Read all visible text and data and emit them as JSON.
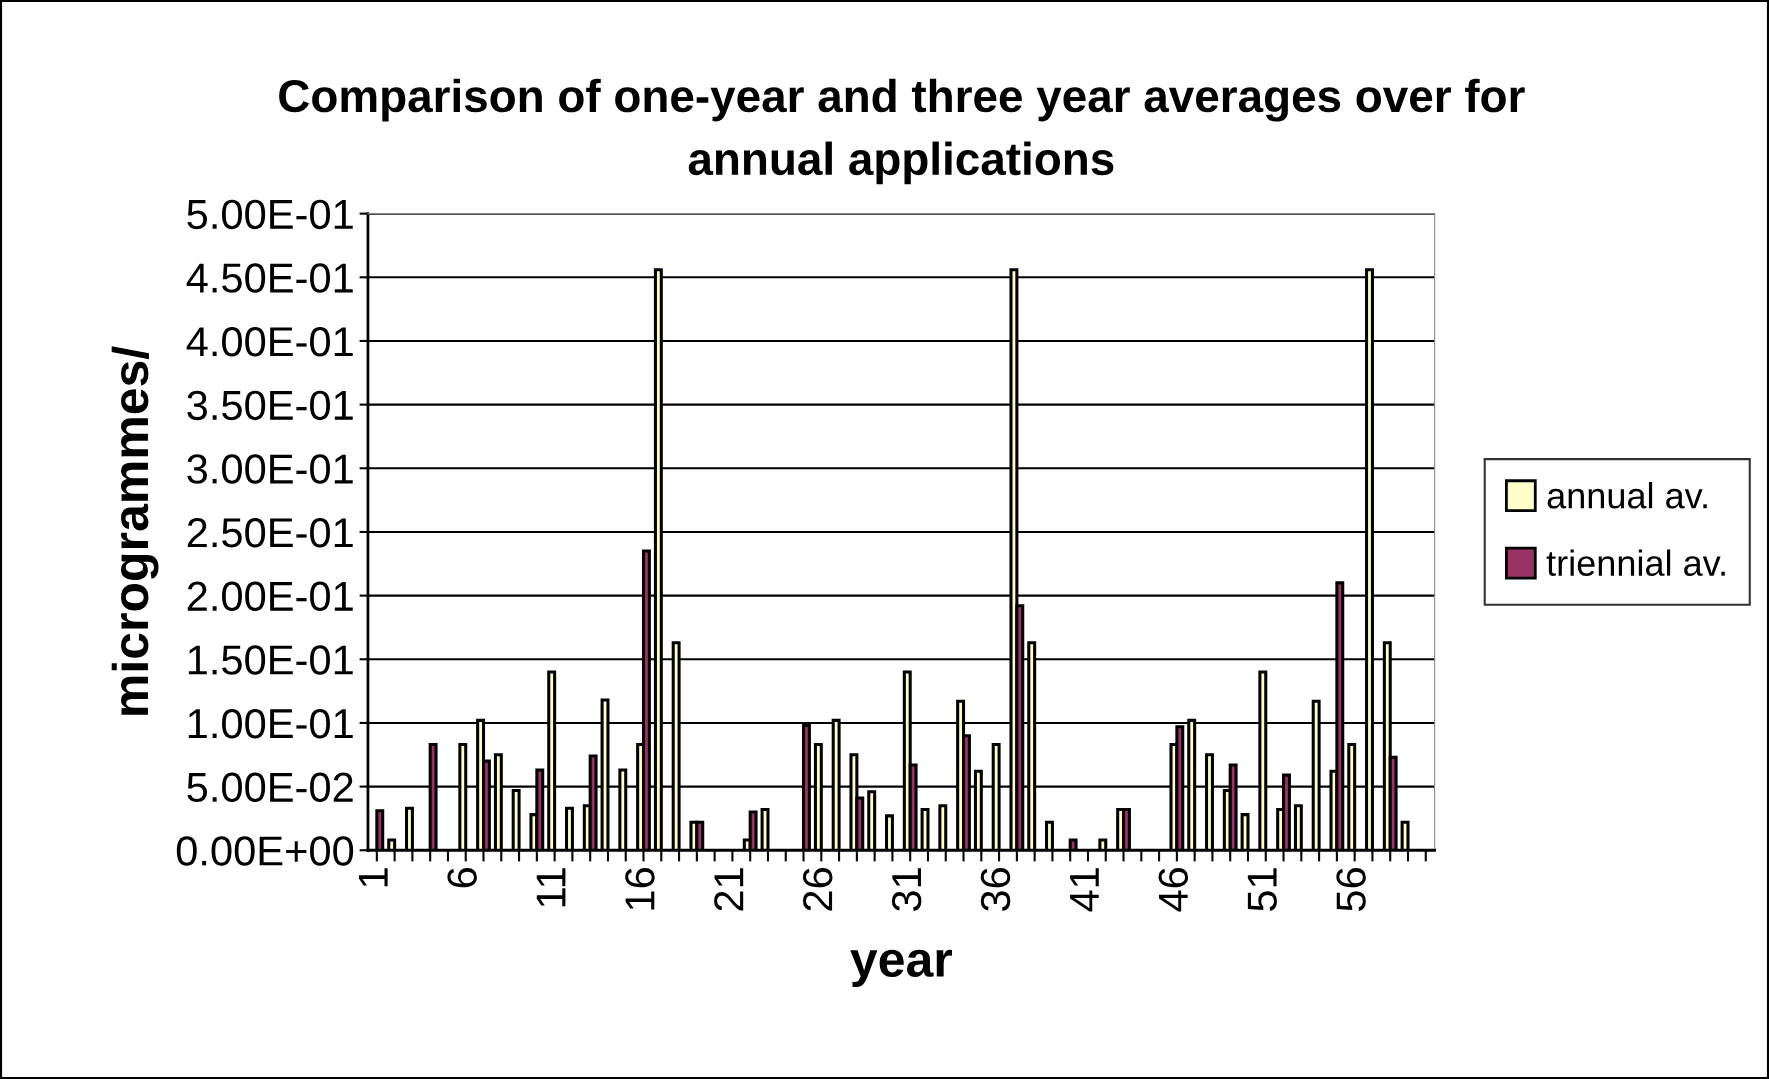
{
  "chart_data": {
    "type": "bar",
    "title": "Comparison of one-year and three year averages over for\nannual applications",
    "xlabel": "year",
    "ylabel": "microgrammes/",
    "categories": [
      "1",
      null,
      null,
      null,
      null,
      "6",
      null,
      null,
      null,
      null,
      "11",
      null,
      null,
      null,
      null,
      "16",
      null,
      null,
      null,
      null,
      "21",
      null,
      null,
      null,
      null,
      "26",
      null,
      null,
      null,
      null,
      "31",
      null,
      null,
      null,
      null,
      "36",
      null,
      null,
      null,
      null,
      "41",
      null,
      null,
      null,
      null,
      "46",
      null,
      null,
      null,
      null,
      "51",
      null,
      null,
      null,
      null,
      "56",
      null,
      null,
      null,
      null
    ],
    "series": [
      {
        "name": "annual av.",
        "color": "#ffffcc",
        "values": [
          null,
          0.008,
          0.033,
          null,
          null,
          0.083,
          0.102,
          0.075,
          0.047,
          0.028,
          0.14,
          0.033,
          0.035,
          0.118,
          0.063,
          0.083,
          0.456,
          0.163,
          0.022,
          null,
          null,
          0.008,
          0.032,
          null,
          null,
          0.083,
          0.102,
          0.075,
          0.046,
          0.027,
          0.14,
          0.032,
          0.035,
          0.117,
          0.062,
          0.083,
          0.456,
          0.163,
          0.022,
          null,
          null,
          0.008,
          0.032,
          null,
          null,
          0.083,
          0.102,
          0.075,
          0.047,
          0.028,
          0.14,
          0.032,
          0.035,
          0.117,
          0.062,
          0.083,
          0.456,
          0.163,
          0.022,
          null
        ]
      },
      {
        "name": "triennial av.",
        "color": "#993366",
        "values": [
          0.031,
          null,
          null,
          0.083,
          null,
          null,
          0.07,
          null,
          null,
          0.063,
          null,
          null,
          0.074,
          null,
          null,
          0.235,
          null,
          null,
          0.022,
          null,
          null,
          0.03,
          null,
          null,
          0.098,
          null,
          null,
          0.041,
          null,
          null,
          0.067,
          null,
          null,
          0.09,
          null,
          null,
          0.192,
          null,
          null,
          0.008,
          null,
          null,
          0.032,
          null,
          null,
          0.097,
          null,
          null,
          0.067,
          null,
          null,
          0.059,
          null,
          null,
          0.21,
          null,
          null,
          0.073,
          null,
          null
        ]
      }
    ],
    "ylim": [
      0,
      0.5
    ],
    "yticks": [
      {
        "value": 0,
        "label": "0.00E+00"
      },
      {
        "value": 0.05,
        "label": "5.00E-02"
      },
      {
        "value": 0.1,
        "label": "1.00E-01"
      },
      {
        "value": 0.15,
        "label": "1.50E-01"
      },
      {
        "value": 0.2,
        "label": "2.00E-01"
      },
      {
        "value": 0.25,
        "label": "2.50E-01"
      },
      {
        "value": 0.3,
        "label": "3.00E-01"
      },
      {
        "value": 0.35,
        "label": "3.50E-01"
      },
      {
        "value": 0.4,
        "label": "4.00E-01"
      },
      {
        "value": 0.45,
        "label": "4.50E-01"
      },
      {
        "value": 0.5,
        "label": "5.00E-01"
      }
    ],
    "grid": "y",
    "legend": "right"
  }
}
